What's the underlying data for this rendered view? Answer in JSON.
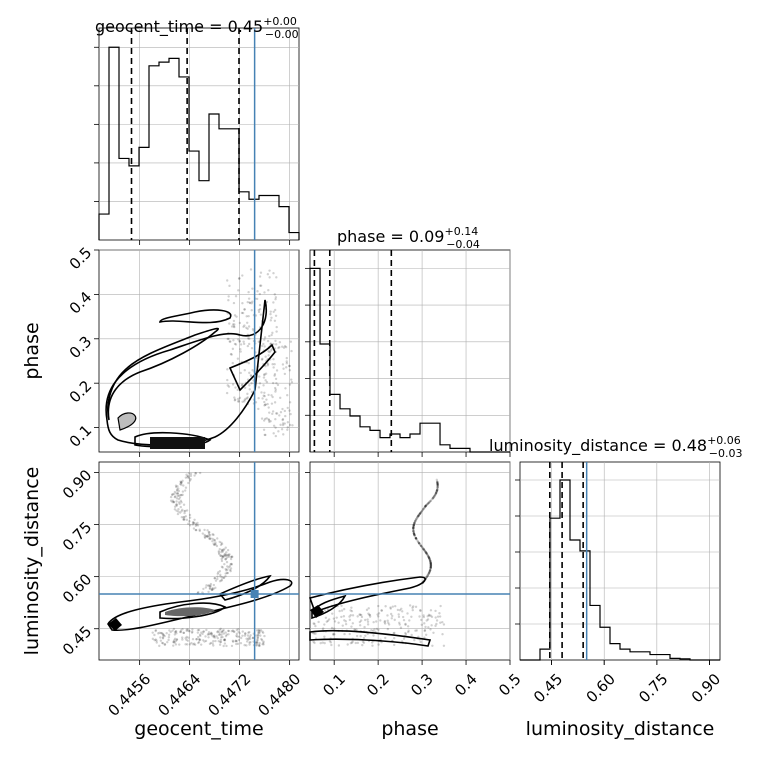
{
  "chart_data": {
    "type": "corner",
    "parameters": [
      "geocent_time",
      "phase",
      "luminosity_distance"
    ],
    "truth_color": "#4682b4",
    "truths": {
      "geocent_time": 0.44744,
      "luminosity_distance": 0.55
    },
    "titles": [
      {
        "param": "geocent_time",
        "prefix": "geocent_time = 0.45",
        "plus": "+0.00",
        "minus": "−0.00"
      },
      {
        "param": "phase",
        "prefix": "phase = 0.09",
        "plus": "+0.14",
        "minus": "−0.04"
      },
      {
        "param": "luminosity_distance",
        "prefix": "luminosity_distance = 0.48",
        "plus": "+0.06",
        "minus": "−0.03"
      }
    ],
    "axes": {
      "geocent_time": {
        "lim": [
          0.44495,
          0.44815
        ],
        "ticks": [
          0.4456,
          0.4464,
          0.4472,
          0.448
        ],
        "ticklabels": [
          "0.4456",
          "0.4464",
          "0.4472",
          "0.4480"
        ]
      },
      "phase": {
        "lim": [
          0.045,
          0.5
        ],
        "ticks": [
          0.1,
          0.2,
          0.3,
          0.4,
          0.5
        ],
        "ticklabels": [
          "0.1",
          "0.2",
          "0.3",
          "0.4",
          "0.5"
        ]
      },
      "luminosity_distance": {
        "lim": [
          0.36,
          0.93
        ],
        "ticks": [
          0.45,
          0.6,
          0.75,
          0.9
        ],
        "ticklabels": [
          "0.45",
          "0.60",
          "0.75",
          "0.90"
        ]
      }
    },
    "histograms": {
      "geocent_time": {
        "edges": [
          0.44495,
          0.44511,
          0.44527,
          0.44543,
          0.44559,
          0.44575,
          0.44591,
          0.44607,
          0.44623,
          0.44639,
          0.44655,
          0.44671,
          0.44687,
          0.44703,
          0.44719,
          0.44735,
          0.44751,
          0.44767,
          0.44783,
          0.44799,
          0.44815
        ],
        "counts": [
          7,
          52,
          22,
          20,
          25,
          47,
          48,
          49,
          44,
          24,
          16,
          34,
          30,
          30,
          13,
          11,
          12,
          12,
          9,
          2
        ],
        "quantiles": [
          0.44547,
          0.44636,
          0.44719
        ]
      },
      "phase": {
        "edges": [
          0.045,
          0.0678,
          0.0905,
          0.1133,
          0.136,
          0.1588,
          0.1815,
          0.2043,
          0.227,
          0.2498,
          0.2725,
          0.2953,
          0.318,
          0.3408,
          0.3635,
          0.3863,
          0.409,
          0.4318,
          0.4545,
          0.4773,
          0.5
        ],
        "counts": [
          51,
          30,
          16,
          12,
          10,
          7,
          6,
          4,
          5,
          4,
          5,
          8,
          8,
          2,
          1,
          1,
          0,
          0,
          0,
          0
        ],
        "quantiles": [
          0.055,
          0.09,
          0.23
        ]
      },
      "luminosity_distance": {
        "edges": [
          0.36,
          0.3885,
          0.417,
          0.4455,
          0.474,
          0.5025,
          0.531,
          0.5595,
          0.588,
          0.6165,
          0.645,
          0.6735,
          0.702,
          0.7305,
          0.759,
          0.7875,
          0.816,
          0.8445,
          0.873,
          0.9015,
          0.93
        ],
        "counts": [
          0,
          0,
          2,
          26,
          33,
          22,
          20,
          10,
          6,
          3,
          2,
          1.5,
          1.5,
          1,
          1,
          0.3,
          0.2,
          0,
          0,
          0
        ],
        "quantiles": [
          0.445,
          0.48,
          0.54
        ]
      }
    }
  }
}
